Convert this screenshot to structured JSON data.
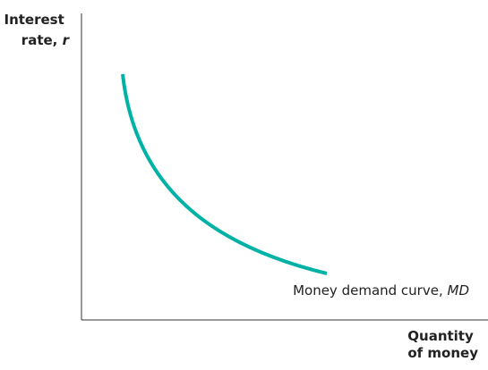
{
  "chart_data": {
    "type": "line",
    "title": "",
    "ylabel_lines": [
      "Interest",
      "rate, "
    ],
    "ylabel_var": "r",
    "xlabel_lines": [
      "Quantity",
      "of money"
    ],
    "series": [
      {
        "label_text": "Money demand curve, ",
        "label_var": "MD",
        "color": "#00b2a6"
      }
    ],
    "ticks": "none",
    "grid": false
  }
}
